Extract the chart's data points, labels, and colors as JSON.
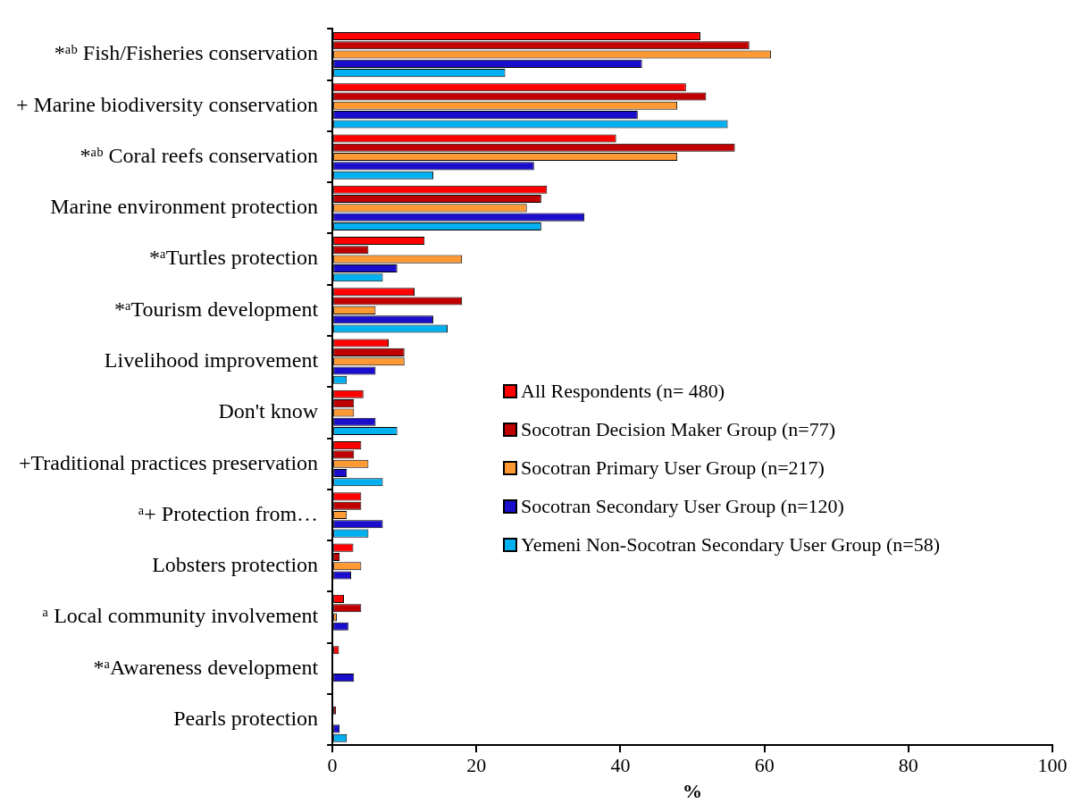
{
  "chart_data": {
    "type": "bar",
    "orientation": "horizontal",
    "xlabel": "%",
    "categories": [
      "*ᵃᵇ Fish/Fisheries conservation",
      "+ Marine biodiversity conservation",
      "*ᵃᵇ Coral reefs conservation",
      "Marine environment protection",
      "*ᵃTurtles protection",
      "*ᵃTourism development",
      "Livelihood improvement",
      "Don't know",
      "+Traditional practices preservation",
      "ᵃ+ Protection from…",
      "Lobsters protection",
      "ᵃ Local community involvement",
      "*ᵃAwareness development",
      "Pearls protection"
    ],
    "series": [
      {
        "name": "All Respondents (n= 480)",
        "color": "#ff0000",
        "values": [
          51.1,
          49.1,
          39.4,
          29.8,
          12.8,
          11.4,
          7.8,
          4.3,
          4,
          4,
          2.9,
          1.6,
          0.9,
          0
        ]
      },
      {
        "name": "Socotran Decision Maker Group (n=77)",
        "color": "#c00000",
        "values": [
          57.9,
          51.9,
          55.9,
          29,
          5,
          18,
          10,
          3,
          3,
          4,
          1,
          4,
          0,
          0.5
        ]
      },
      {
        "name": "Socotran Primary User Group (n=217)",
        "color": "#ff9933",
        "values": [
          60.9,
          47.9,
          47.9,
          27,
          18,
          6,
          10,
          3,
          5,
          2,
          4,
          0.6,
          0,
          0
        ]
      },
      {
        "name": "Socotran Secondary User Group (n=120)",
        "color": "#1a0dcc",
        "values": [
          43,
          42.4,
          28,
          35,
          9,
          14,
          6,
          6,
          2,
          7,
          2.6,
          2.2,
          3,
          1
        ]
      },
      {
        "name": "Yemeni Non-Socotran Secondary User Group (n=58)",
        "color": "#00b0f0",
        "values": [
          24,
          54.9,
          14,
          29,
          7,
          16,
          2,
          9,
          7,
          5,
          0,
          0,
          0,
          2
        ]
      }
    ],
    "xlim": [
      0,
      100
    ],
    "xticks": [
      0,
      20,
      40,
      60,
      80,
      100
    ],
    "grid": false,
    "legend": "right"
  }
}
